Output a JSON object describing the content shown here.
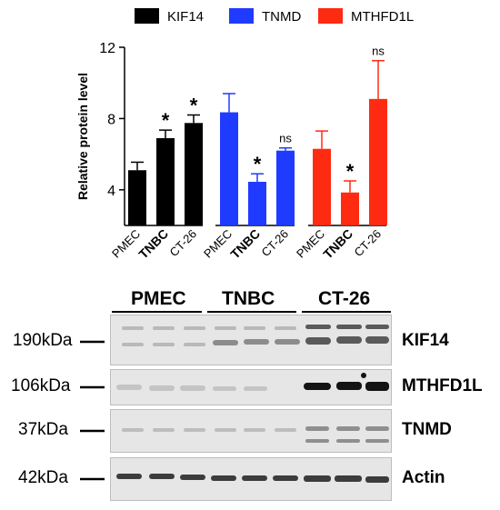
{
  "chart_data": {
    "type": "bar",
    "legend": {
      "placement": "top",
      "items": [
        {
          "name": "KIF14",
          "color": "#000000"
        },
        {
          "name": "TNMD",
          "color": "#1f3bff"
        },
        {
          "name": "MTHFD1L",
          "color": "#ff2a12"
        }
      ]
    },
    "ylabel": "Relative protein level",
    "ylim": [
      2,
      12
    ],
    "yticks": [
      "4",
      "8",
      "12"
    ],
    "categories": [
      "PMEC",
      "TNBC",
      "CT-26"
    ],
    "series": [
      {
        "name": "KIF14",
        "color": "#000000",
        "values": [
          5.1,
          6.9,
          7.75
        ],
        "errors": [
          0.45,
          0.45,
          0.45
        ],
        "annotations": [
          "",
          "*",
          "*"
        ]
      },
      {
        "name": "TNMD",
        "color": "#1f3bff",
        "values": [
          8.35,
          4.45,
          6.2
        ],
        "errors": [
          1.05,
          0.45,
          0.15
        ],
        "annotations": [
          "",
          "*",
          "ns"
        ]
      },
      {
        "name": "MTHFD1L",
        "color": "#ff2a12",
        "values": [
          6.3,
          3.85,
          9.1
        ],
        "errors": [
          1.0,
          0.65,
          2.15
        ],
        "annotations": [
          "",
          "*",
          "ns"
        ]
      }
    ]
  },
  "blot": {
    "groups": [
      "PMEC",
      "TNBC",
      "CT-26"
    ],
    "rows": [
      {
        "marker": "190kDa",
        "protein": "KIF14"
      },
      {
        "marker": "106kDa",
        "protein": "MTHFD1L"
      },
      {
        "marker": "37kDa",
        "protein": "TNMD"
      },
      {
        "marker": "42kDa",
        "protein": "Actin"
      }
    ]
  }
}
